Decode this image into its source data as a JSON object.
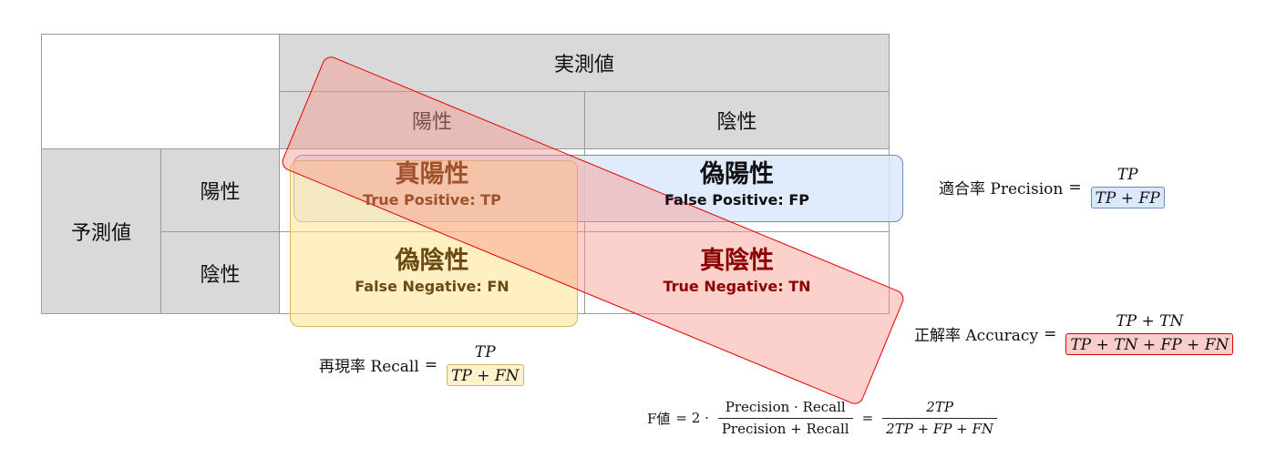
{
  "table": {
    "actual_header": "実測値",
    "actual_positive": "陽性",
    "actual_negative": "陰性",
    "predicted_header": "予測値",
    "predicted_positive": "陽性",
    "predicted_negative": "陰性"
  },
  "cells": {
    "tp": {
      "jp": "真陽性",
      "en": "True Positive: TP",
      "color": "#a0522d"
    },
    "fp": {
      "jp": "偽陽性",
      "en": "False Positive: FP",
      "color": "#111111"
    },
    "fn": {
      "jp": "偽陰性",
      "en": "False Negative: FN",
      "color": "#6b4a14"
    },
    "tn": {
      "jp": "真陰性",
      "en": "True Negative: TN",
      "color": "#8b0000"
    }
  },
  "formulas": {
    "precision": {
      "label": "適合率 Precision",
      "eq": "=",
      "num": "TP",
      "den": "TP + FP"
    },
    "recall": {
      "label": "再現率 Recall",
      "eq": "=",
      "num": "TP",
      "den": "TP + FN"
    },
    "accuracy": {
      "label": "正解率 Accuracy",
      "eq": "=",
      "num": "TP + TN",
      "den": "TP + TN + FP + FN"
    },
    "f_value": {
      "label": "F値",
      "eq1": "= 2 ·",
      "num1": "Precision · Recall",
      "den1": "Precision + Recall",
      "eq2": "=",
      "num2": "2TP",
      "den2": "2TP + FP + FN"
    }
  },
  "colors": {
    "header_gray": "#d9d9d9",
    "blue_fill": "#dae8fc",
    "blue_stroke": "#6c8ebf",
    "yellow_fill": "#fff2cc",
    "yellow_stroke": "#d6b656",
    "red_fill": "#f8cecc",
    "red_stroke": "#e30000"
  }
}
